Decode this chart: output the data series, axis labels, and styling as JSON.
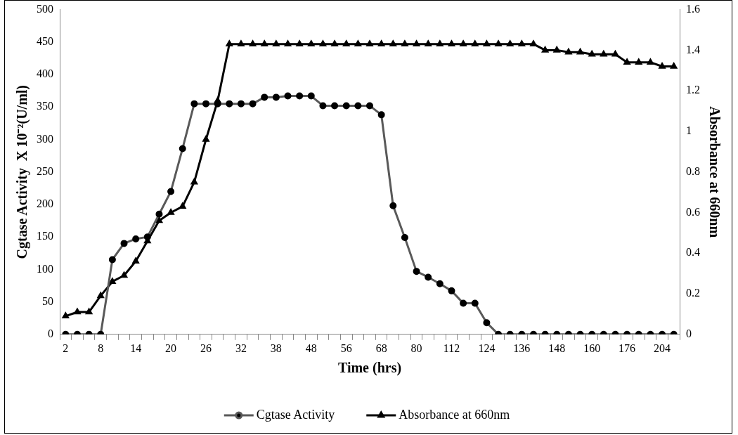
{
  "chart_data": {
    "type": "line",
    "xlabel": "Time (hrs)",
    "ylabel": "Cgtase Activity  X 10⁻²(U/ml)",
    "y2label": "Absorbance at 660nm",
    "categories": [
      "2",
      null,
      null,
      "8",
      null,
      null,
      "14",
      null,
      null,
      "20",
      null,
      null,
      "26",
      null,
      null,
      "32",
      null,
      null,
      "38",
      null,
      null,
      "48",
      null,
      null,
      "56",
      null,
      null,
      "68",
      null,
      null,
      "80",
      null,
      null,
      "112",
      null,
      null,
      "124",
      null,
      null,
      "136",
      null,
      null,
      "148",
      null,
      null,
      "160",
      null,
      null,
      "176",
      null,
      null,
      "204",
      null
    ],
    "series": [
      {
        "name": "Cgtase Activity",
        "color": "#595959",
        "marker": "circle",
        "values": [
          0,
          0,
          0,
          0,
          115,
          140,
          147,
          150,
          185,
          220,
          286,
          355,
          355,
          355,
          355,
          355,
          355,
          365,
          365,
          367,
          367,
          367,
          352,
          352,
          352,
          352,
          352,
          338,
          198,
          149,
          97,
          88,
          78,
          67,
          48,
          48,
          18,
          0,
          0,
          0,
          0,
          0,
          0,
          0,
          0,
          0,
          0,
          0,
          0,
          0,
          0,
          0,
          0
        ]
      },
      {
        "name": "Absorbance at 660nm",
        "color": "#000000",
        "marker": "triangle",
        "axis": "y2",
        "values": [
          0.09,
          0.11,
          0.11,
          0.19,
          0.26,
          0.29,
          0.36,
          0.46,
          0.56,
          0.6,
          0.63,
          0.75,
          0.96,
          1.15,
          1.43,
          1.43,
          1.43,
          1.43,
          1.43,
          1.43,
          1.43,
          1.43,
          1.43,
          1.43,
          1.43,
          1.43,
          1.43,
          1.43,
          1.43,
          1.43,
          1.43,
          1.43,
          1.43,
          1.43,
          1.43,
          1.43,
          1.43,
          1.43,
          1.43,
          1.43,
          1.43,
          1.4,
          1.4,
          1.39,
          1.39,
          1.38,
          1.38,
          1.38,
          1.34,
          1.34,
          1.34,
          1.32,
          1.32
        ]
      }
    ],
    "ylim": [
      0,
      500
    ],
    "yticks": [
      0,
      50,
      100,
      150,
      200,
      250,
      300,
      350,
      400,
      450,
      500
    ],
    "y2lim": [
      0,
      1.6
    ],
    "y2ticks": [
      0,
      0.2,
      0.4,
      0.6,
      0.8,
      1,
      1.2,
      1.4,
      1.6
    ],
    "grid": false,
    "legend": "bottom"
  }
}
